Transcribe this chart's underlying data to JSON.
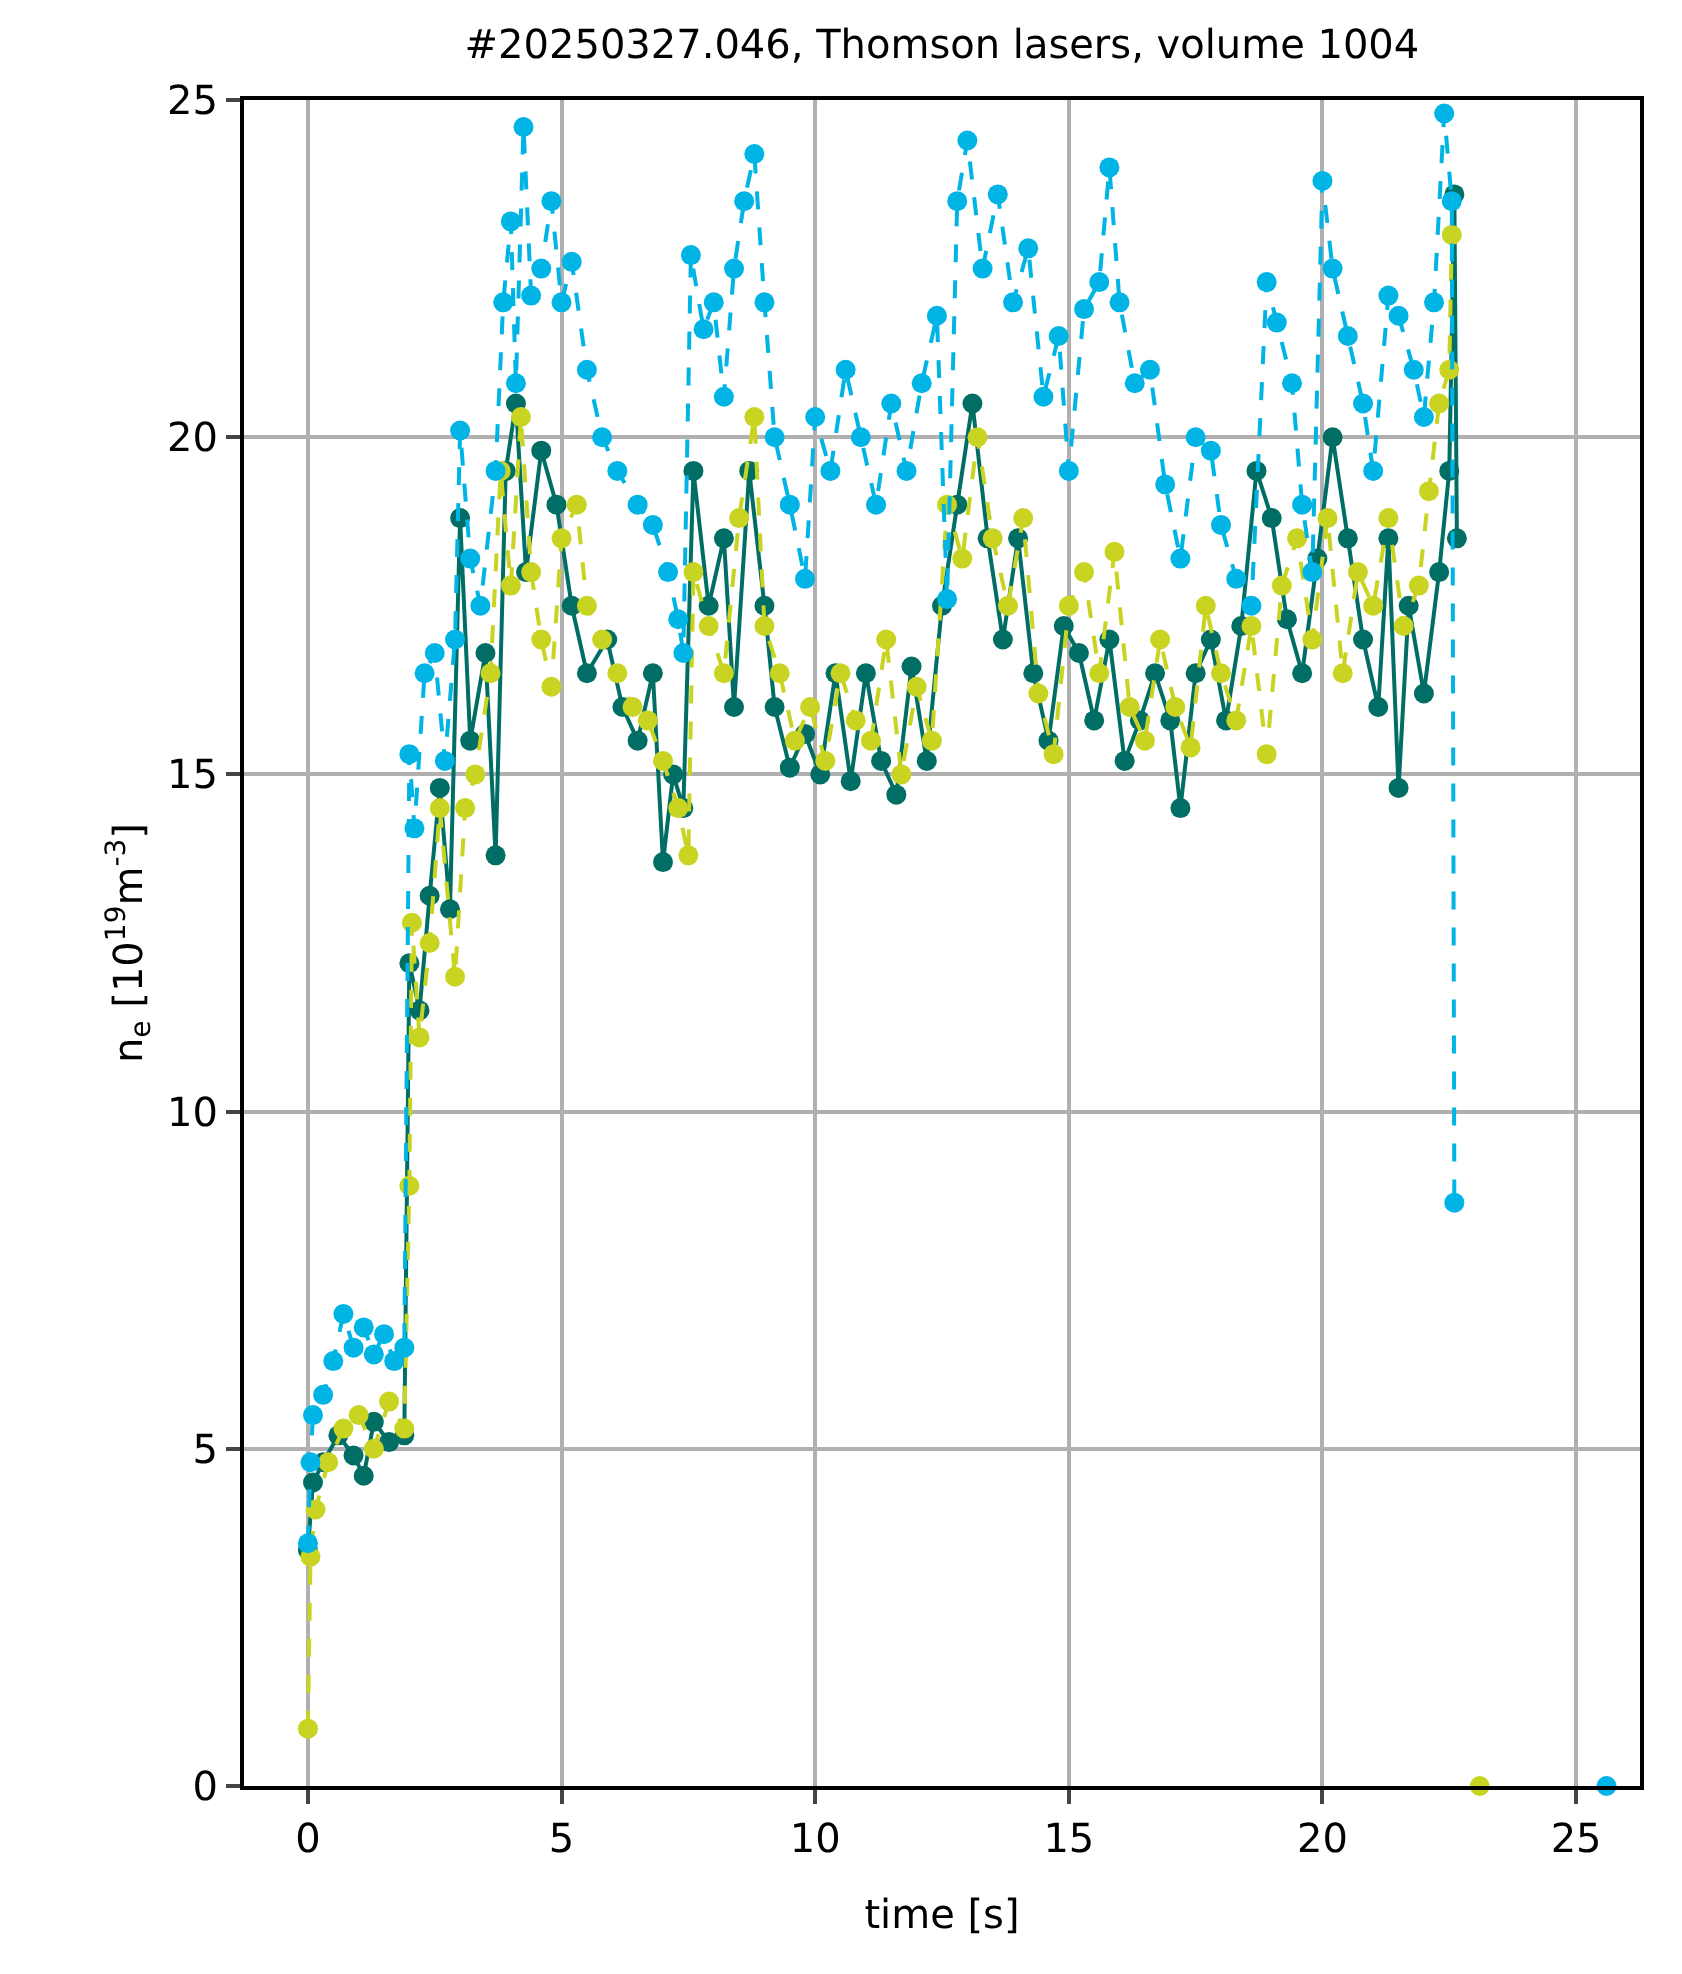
{
  "chart_data": {
    "type": "line",
    "title": "#20250327.046, Thomson lasers, volume 1004",
    "xlabel": "time [s]",
    "ylabel": "n$_{e}$ [10$^{19}$m$^{-3}$]",
    "xlim": [
      -1.26,
      26.26
    ],
    "xticks": [
      0,
      5,
      10,
      15,
      20,
      25
    ],
    "ylim": [
      0,
      25
    ],
    "yticks": [
      0,
      5,
      10,
      15,
      20,
      25
    ],
    "grid": true,
    "marker": "circle",
    "series": [
      {
        "color": "#006e64",
        "line_style": "solid",
        "x": [
          0.0,
          0.1,
          0.3,
          0.6,
          0.9,
          1.1,
          1.3,
          1.6,
          1.9,
          2.0,
          2.2,
          2.4,
          2.6,
          2.8,
          3.0,
          3.2,
          3.5,
          3.7,
          3.9,
          4.1,
          4.3,
          4.6,
          4.9,
          5.2,
          5.5,
          5.9,
          6.2,
          6.5,
          6.8,
          7.0,
          7.2,
          7.4,
          7.6,
          7.9,
          8.2,
          8.4,
          8.7,
          9.0,
          9.2,
          9.5,
          9.8,
          10.1,
          10.4,
          10.7,
          11.0,
          11.3,
          11.6,
          11.9,
          12.2,
          12.5,
          12.8,
          13.1,
          13.4,
          13.7,
          14.0,
          14.3,
          14.6,
          14.9,
          15.2,
          15.5,
          15.8,
          16.1,
          16.4,
          16.7,
          17.0,
          17.2,
          17.5,
          17.8,
          18.1,
          18.4,
          18.7,
          19.0,
          19.3,
          19.6,
          19.9,
          20.2,
          20.5,
          20.8,
          21.1,
          21.3,
          21.5,
          21.7,
          22.0,
          22.3,
          22.5,
          22.6,
          22.65
        ],
        "values": [
          3.5,
          4.5,
          4.8,
          5.2,
          4.9,
          4.6,
          5.4,
          5.1,
          5.2,
          12.2,
          11.5,
          13.2,
          14.8,
          13.0,
          18.8,
          15.5,
          16.8,
          13.8,
          19.5,
          20.5,
          18.0,
          19.8,
          19.0,
          17.5,
          16.5,
          17.0,
          16.0,
          15.5,
          16.5,
          13.7,
          15.0,
          14.5,
          19.5,
          17.5,
          18.5,
          16.0,
          19.5,
          17.5,
          16.0,
          15.1,
          15.6,
          15.0,
          16.5,
          14.9,
          16.5,
          15.2,
          14.7,
          16.6,
          15.2,
          17.5,
          19.0,
          20.5,
          18.5,
          17.0,
          18.5,
          16.5,
          15.5,
          17.2,
          16.8,
          15.8,
          17.0,
          15.2,
          15.8,
          16.5,
          15.8,
          14.5,
          16.5,
          17.0,
          15.8,
          17.2,
          19.5,
          18.8,
          17.3,
          16.5,
          18.2,
          20.0,
          18.5,
          17.0,
          16.0,
          18.5,
          14.8,
          17.5,
          16.2,
          18.0,
          19.5,
          23.6,
          18.5
        ]
      },
      {
        "color": "#c8d421",
        "line_style": "dashed",
        "x": [
          0.0,
          0.05,
          0.15,
          0.4,
          0.7,
          1.0,
          1.3,
          1.6,
          1.9,
          2.0,
          2.05,
          2.2,
          2.4,
          2.6,
          2.9,
          3.1,
          3.3,
          3.6,
          3.8,
          4.0,
          4.2,
          4.4,
          4.6,
          4.8,
          5.0,
          5.3,
          5.5,
          5.8,
          6.1,
          6.4,
          6.7,
          7.0,
          7.3,
          7.5,
          7.6,
          7.9,
          8.2,
          8.5,
          8.8,
          9.0,
          9.3,
          9.6,
          9.9,
          10.2,
          10.5,
          10.8,
          11.1,
          11.4,
          11.7,
          12.0,
          12.3,
          12.6,
          12.9,
          13.2,
          13.5,
          13.8,
          14.1,
          14.4,
          14.7,
          15.0,
          15.3,
          15.6,
          15.9,
          16.2,
          16.5,
          16.8,
          17.1,
          17.4,
          17.7,
          18.0,
          18.3,
          18.6,
          18.9,
          19.2,
          19.5,
          19.8,
          20.1,
          20.4,
          20.7,
          21.0,
          21.3,
          21.6,
          21.9,
          22.1,
          22.3,
          22.5,
          22.55,
          22.8,
          23.1
        ],
        "values": [
          0.85,
          3.4,
          4.1,
          4.8,
          5.3,
          5.5,
          5.0,
          5.7,
          5.3,
          8.9,
          12.8,
          11.1,
          12.5,
          14.5,
          12.0,
          14.5,
          15.0,
          16.5,
          19.5,
          17.8,
          20.3,
          18.0,
          17.0,
          16.3,
          18.5,
          19.0,
          17.5,
          17.0,
          16.5,
          16.0,
          15.8,
          15.2,
          14.5,
          13.8,
          18.0,
          17.2,
          16.5,
          18.8,
          20.3,
          17.2,
          16.5,
          15.5,
          16.0,
          15.2,
          16.5,
          15.8,
          15.5,
          17.0,
          15.0,
          16.3,
          15.5,
          19.0,
          18.2,
          20.0,
          18.5,
          17.5,
          18.8,
          16.2,
          15.3,
          17.5,
          18.0,
          16.5,
          18.3,
          16.0,
          15.5,
          17.0,
          16.0,
          15.4,
          17.5,
          16.5,
          15.8,
          17.2,
          15.3,
          17.8,
          18.5,
          17.0,
          18.8,
          16.5,
          18.0,
          17.5,
          18.8,
          17.2,
          17.8,
          19.2,
          20.5,
          21.0,
          23.0,
          null,
          0
        ]
      },
      {
        "color": "#00b4e6",
        "line_style": "dashed",
        "x": [
          0.0,
          0.05,
          0.1,
          0.3,
          0.5,
          0.7,
          0.9,
          1.1,
          1.3,
          1.5,
          1.7,
          1.9,
          2.0,
          2.1,
          2.3,
          2.5,
          2.7,
          2.9,
          3.0,
          3.2,
          3.4,
          3.7,
          3.85,
          4.0,
          4.1,
          4.25,
          4.4,
          4.6,
          4.8,
          5.0,
          5.2,
          5.5,
          5.8,
          6.1,
          6.5,
          6.8,
          7.1,
          7.3,
          7.4,
          7.55,
          7.8,
          8.0,
          8.2,
          8.4,
          8.6,
          8.8,
          9.0,
          9.2,
          9.5,
          9.8,
          10.0,
          10.3,
          10.6,
          10.9,
          11.2,
          11.5,
          11.8,
          12.1,
          12.4,
          12.6,
          12.8,
          13.0,
          13.3,
          13.6,
          13.9,
          14.2,
          14.5,
          14.8,
          15.0,
          15.3,
          15.6,
          15.8,
          16.0,
          16.3,
          16.6,
          16.9,
          17.2,
          17.5,
          17.8,
          18.0,
          18.3,
          18.6,
          18.9,
          19.1,
          19.4,
          19.6,
          19.8,
          20.0,
          20.2,
          20.5,
          20.8,
          21.0,
          21.3,
          21.5,
          21.8,
          22.0,
          22.2,
          22.4,
          22.55,
          22.6,
          24.0,
          25.6
        ],
        "values": [
          3.6,
          4.8,
          5.5,
          5.8,
          6.3,
          7.0,
          6.5,
          6.8,
          6.4,
          6.7,
          6.3,
          6.5,
          15.3,
          14.2,
          16.5,
          16.8,
          15.2,
          17.0,
          20.1,
          18.2,
          17.5,
          19.5,
          22.0,
          23.2,
          20.8,
          24.6,
          22.1,
          22.5,
          23.5,
          22.0,
          22.6,
          21.0,
          20.0,
          19.5,
          19.0,
          18.7,
          18.0,
          17.3,
          16.8,
          22.7,
          21.6,
          22.0,
          20.6,
          22.5,
          23.5,
          24.2,
          22.0,
          20.0,
          19.0,
          17.9,
          20.3,
          19.5,
          21.0,
          20.0,
          19.0,
          20.5,
          19.5,
          20.8,
          21.8,
          17.6,
          23.5,
          24.4,
          22.5,
          23.6,
          22.0,
          22.8,
          20.6,
          21.5,
          19.5,
          21.9,
          22.3,
          24.0,
          22.0,
          20.8,
          21.0,
          19.3,
          18.2,
          20.0,
          19.8,
          18.7,
          17.9,
          17.5,
          22.3,
          21.7,
          20.8,
          19.0,
          18.0,
          23.8,
          22.5,
          21.5,
          20.5,
          19.5,
          22.1,
          21.8,
          21.0,
          20.3,
          22.0,
          24.8,
          23.5,
          8.65,
          null,
          0
        ]
      }
    ]
  }
}
